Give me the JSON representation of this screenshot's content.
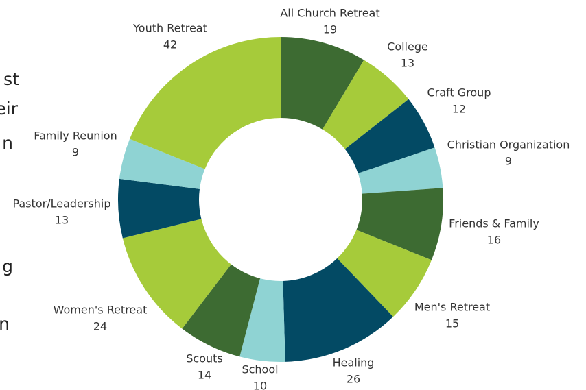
{
  "chart_data": {
    "type": "donut",
    "categories": [
      "All Church Retreat",
      "College",
      "Craft Group",
      "Christian Organization",
      "Friends & Family",
      "Men's Retreat",
      "Healing",
      "School",
      "Scouts",
      "Women's Retreat",
      "Pastor/Leadership",
      "Family Reunion",
      "Youth Retreat"
    ],
    "values": [
      19,
      13,
      12,
      9,
      16,
      15,
      26,
      10,
      14,
      24,
      13,
      9,
      42
    ],
    "colors": [
      "#3d6b32",
      "#a6cb3a",
      "#034a64",
      "#8fd3d3",
      "#3d6b32",
      "#a6cb3a",
      "#034a64",
      "#8fd3d3",
      "#3d6b32",
      "#a6cb3a",
      "#034a64",
      "#8fd3d3",
      "#a6cb3a"
    ]
  },
  "clipped_text": [
    "st",
    "eir",
    "n",
    "g",
    "n"
  ]
}
